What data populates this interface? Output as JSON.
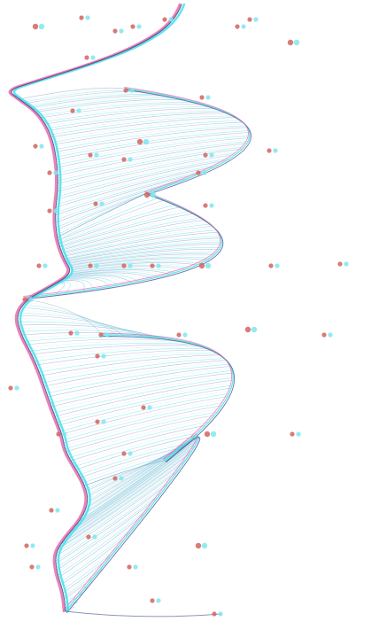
{
  "artwork": {
    "palette": {
      "background": "#ffffff",
      "cyan": "#3fe0ec",
      "magenta": "#ec6aa8",
      "navy": "#3c4f8c",
      "pale": "#dfe6f3",
      "dot_red": "#d2645f",
      "dot_cyan": "#7fe6f0"
    }
  }
}
